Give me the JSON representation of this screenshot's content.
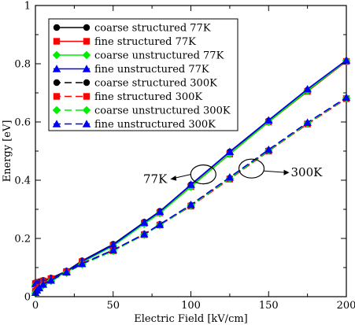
{
  "chart_data": {
    "type": "line",
    "xlabel": "Electric Field [kV/cm]",
    "ylabel": "Energy [eV]",
    "xlim": [
      0,
      200
    ],
    "ylim": [
      0,
      1
    ],
    "xticks": [
      0,
      50,
      100,
      150,
      200
    ],
    "yticks": [
      0,
      0.2,
      0.4,
      0.6,
      0.8,
      1
    ],
    "ytick_labels": [
      "0",
      "0.2",
      "0.4",
      "0.6",
      "0.8",
      "1"
    ],
    "grid": false,
    "legend_position": "top-left",
    "series": [
      {
        "name": "coarse structured 77K",
        "color": "#000000",
        "marker": "circle",
        "dash": "solid",
        "x": [
          0,
          1,
          2.5,
          5,
          10,
          20,
          30,
          50,
          70,
          80,
          100,
          125,
          150,
          175,
          200
        ],
        "y": [
          0.047,
          0.049,
          0.051,
          0.056,
          0.064,
          0.088,
          0.123,
          0.18,
          0.256,
          0.293,
          0.384,
          0.497,
          0.604,
          0.709,
          0.809
        ]
      },
      {
        "name": "fine structured 77K",
        "color": "#ff0000",
        "marker": "square",
        "dash": "solid",
        "x": [
          0,
          1,
          2.5,
          5,
          10,
          20,
          30,
          50,
          70,
          80,
          100,
          125,
          150,
          175,
          200
        ],
        "y": [
          0.045,
          0.047,
          0.049,
          0.054,
          0.062,
          0.086,
          0.12,
          0.176,
          0.252,
          0.288,
          0.378,
          0.49,
          0.6,
          0.705,
          0.808
        ]
      },
      {
        "name": "coarse unstructured 77K",
        "color": "#00ee00",
        "marker": "diamond",
        "dash": "solid",
        "x": [
          0,
          1,
          2.5,
          5,
          10,
          20,
          30,
          50,
          70,
          80,
          100,
          125,
          150,
          175,
          200
        ],
        "y": [
          0.04,
          0.042,
          0.045,
          0.05,
          0.058,
          0.084,
          0.118,
          0.174,
          0.25,
          0.287,
          0.377,
          0.49,
          0.6,
          0.707,
          0.81
        ]
      },
      {
        "name": "fine unstructured 77K",
        "color": "#0000ff",
        "marker": "triangle",
        "dash": "solid",
        "x": [
          0,
          1,
          2.5,
          5,
          10,
          20,
          30,
          50,
          70,
          80,
          100,
          125,
          150,
          175,
          200
        ],
        "y": [
          0.043,
          0.045,
          0.048,
          0.053,
          0.062,
          0.087,
          0.121,
          0.178,
          0.255,
          0.292,
          0.385,
          0.498,
          0.606,
          0.713,
          0.812
        ]
      },
      {
        "name": "coarse structured 300K",
        "color": "#000000",
        "marker": "circle",
        "dash": "dashed",
        "x": [
          0,
          1,
          2.5,
          5,
          10,
          20,
          30,
          50,
          70,
          80,
          100,
          125,
          150,
          175,
          200
        ],
        "y": [
          0.02,
          0.026,
          0.034,
          0.045,
          0.058,
          0.085,
          0.114,
          0.16,
          0.215,
          0.248,
          0.314,
          0.407,
          0.502,
          0.594,
          0.681
        ]
      },
      {
        "name": "fine structured 300K",
        "color": "#ff0000",
        "marker": "square",
        "dash": "dashed",
        "x": [
          0,
          1,
          2.5,
          5,
          10,
          20,
          30,
          50,
          70,
          80,
          100,
          125,
          150,
          175,
          200
        ],
        "y": [
          0.018,
          0.025,
          0.033,
          0.044,
          0.057,
          0.084,
          0.113,
          0.158,
          0.213,
          0.246,
          0.311,
          0.404,
          0.5,
          0.593,
          0.68
        ]
      },
      {
        "name": "coarse unstructured 300K",
        "color": "#00ee00",
        "marker": "diamond",
        "dash": "dashed",
        "x": [
          0,
          1,
          2.5,
          5,
          10,
          20,
          30,
          50,
          70,
          80,
          100,
          125,
          150,
          175,
          200
        ],
        "y": [
          0.012,
          0.02,
          0.028,
          0.04,
          0.054,
          0.082,
          0.111,
          0.157,
          0.213,
          0.246,
          0.313,
          0.406,
          0.502,
          0.595,
          0.682
        ]
      },
      {
        "name": "fine unstructured 300K",
        "color": "#0000ff",
        "marker": "triangle",
        "dash": "dashed",
        "x": [
          0,
          1,
          2.5,
          5,
          10,
          20,
          30,
          50,
          70,
          80,
          100,
          125,
          150,
          175,
          200
        ],
        "y": [
          0.014,
          0.022,
          0.03,
          0.042,
          0.056,
          0.084,
          0.113,
          0.16,
          0.215,
          0.248,
          0.316,
          0.41,
          0.505,
          0.598,
          0.684
        ]
      }
    ],
    "annotations": [
      {
        "text": "77K",
        "ellipse_center": [
          108,
          0.42
        ],
        "arrow": "left"
      },
      {
        "text": "300K",
        "ellipse_center": [
          139,
          0.44
        ],
        "arrow": "right"
      }
    ]
  }
}
